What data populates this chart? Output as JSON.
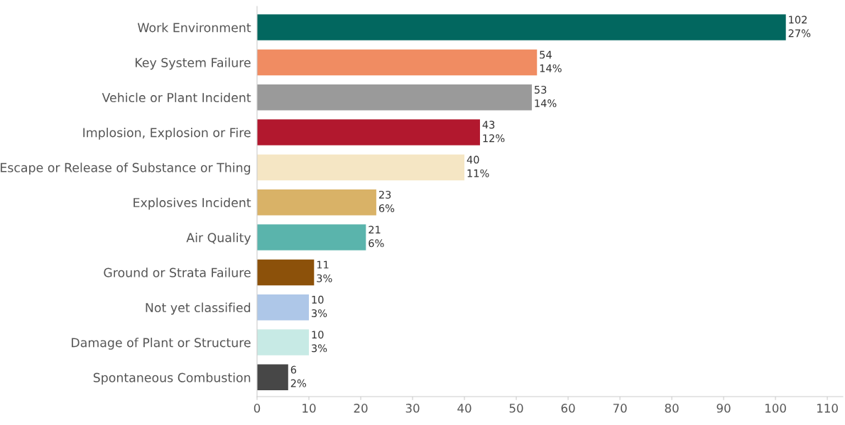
{
  "chart_data": {
    "type": "bar",
    "orientation": "horizontal",
    "categories": [
      "Work Environment",
      "Key System Failure",
      "Vehicle or Plant Incident",
      "Implosion, Explosion or Fire",
      "Escape or Release of Substance or Thing",
      "Explosives Incident",
      "Air Quality",
      "Ground or Strata Failure",
      "Not yet classified",
      "Damage of Plant or Structure",
      "Spontaneous Combustion"
    ],
    "values": [
      102,
      54,
      53,
      43,
      40,
      23,
      21,
      11,
      10,
      10,
      6
    ],
    "value_labels": [
      "102\n27%",
      "54\n14%",
      "53\n14%",
      "43\n12%",
      "40\n11%",
      "23\n6%",
      "21\n6%",
      "11\n3%",
      "10\n3%",
      "10\n3%",
      "6\n2%"
    ],
    "colors": [
      "#02675f",
      "#f08c62",
      "#9a9a9a",
      "#b2182e",
      "#f5e6c4",
      "#d9b267",
      "#5ab4ac",
      "#8c510a",
      "#aec7e8",
      "#c7eae5",
      "#474747"
    ],
    "xlim": [
      0,
      113
    ],
    "xticks": [
      0,
      10,
      20,
      30,
      40,
      50,
      60,
      70,
      80,
      90,
      100,
      110
    ],
    "grid": false,
    "legend": false
  }
}
